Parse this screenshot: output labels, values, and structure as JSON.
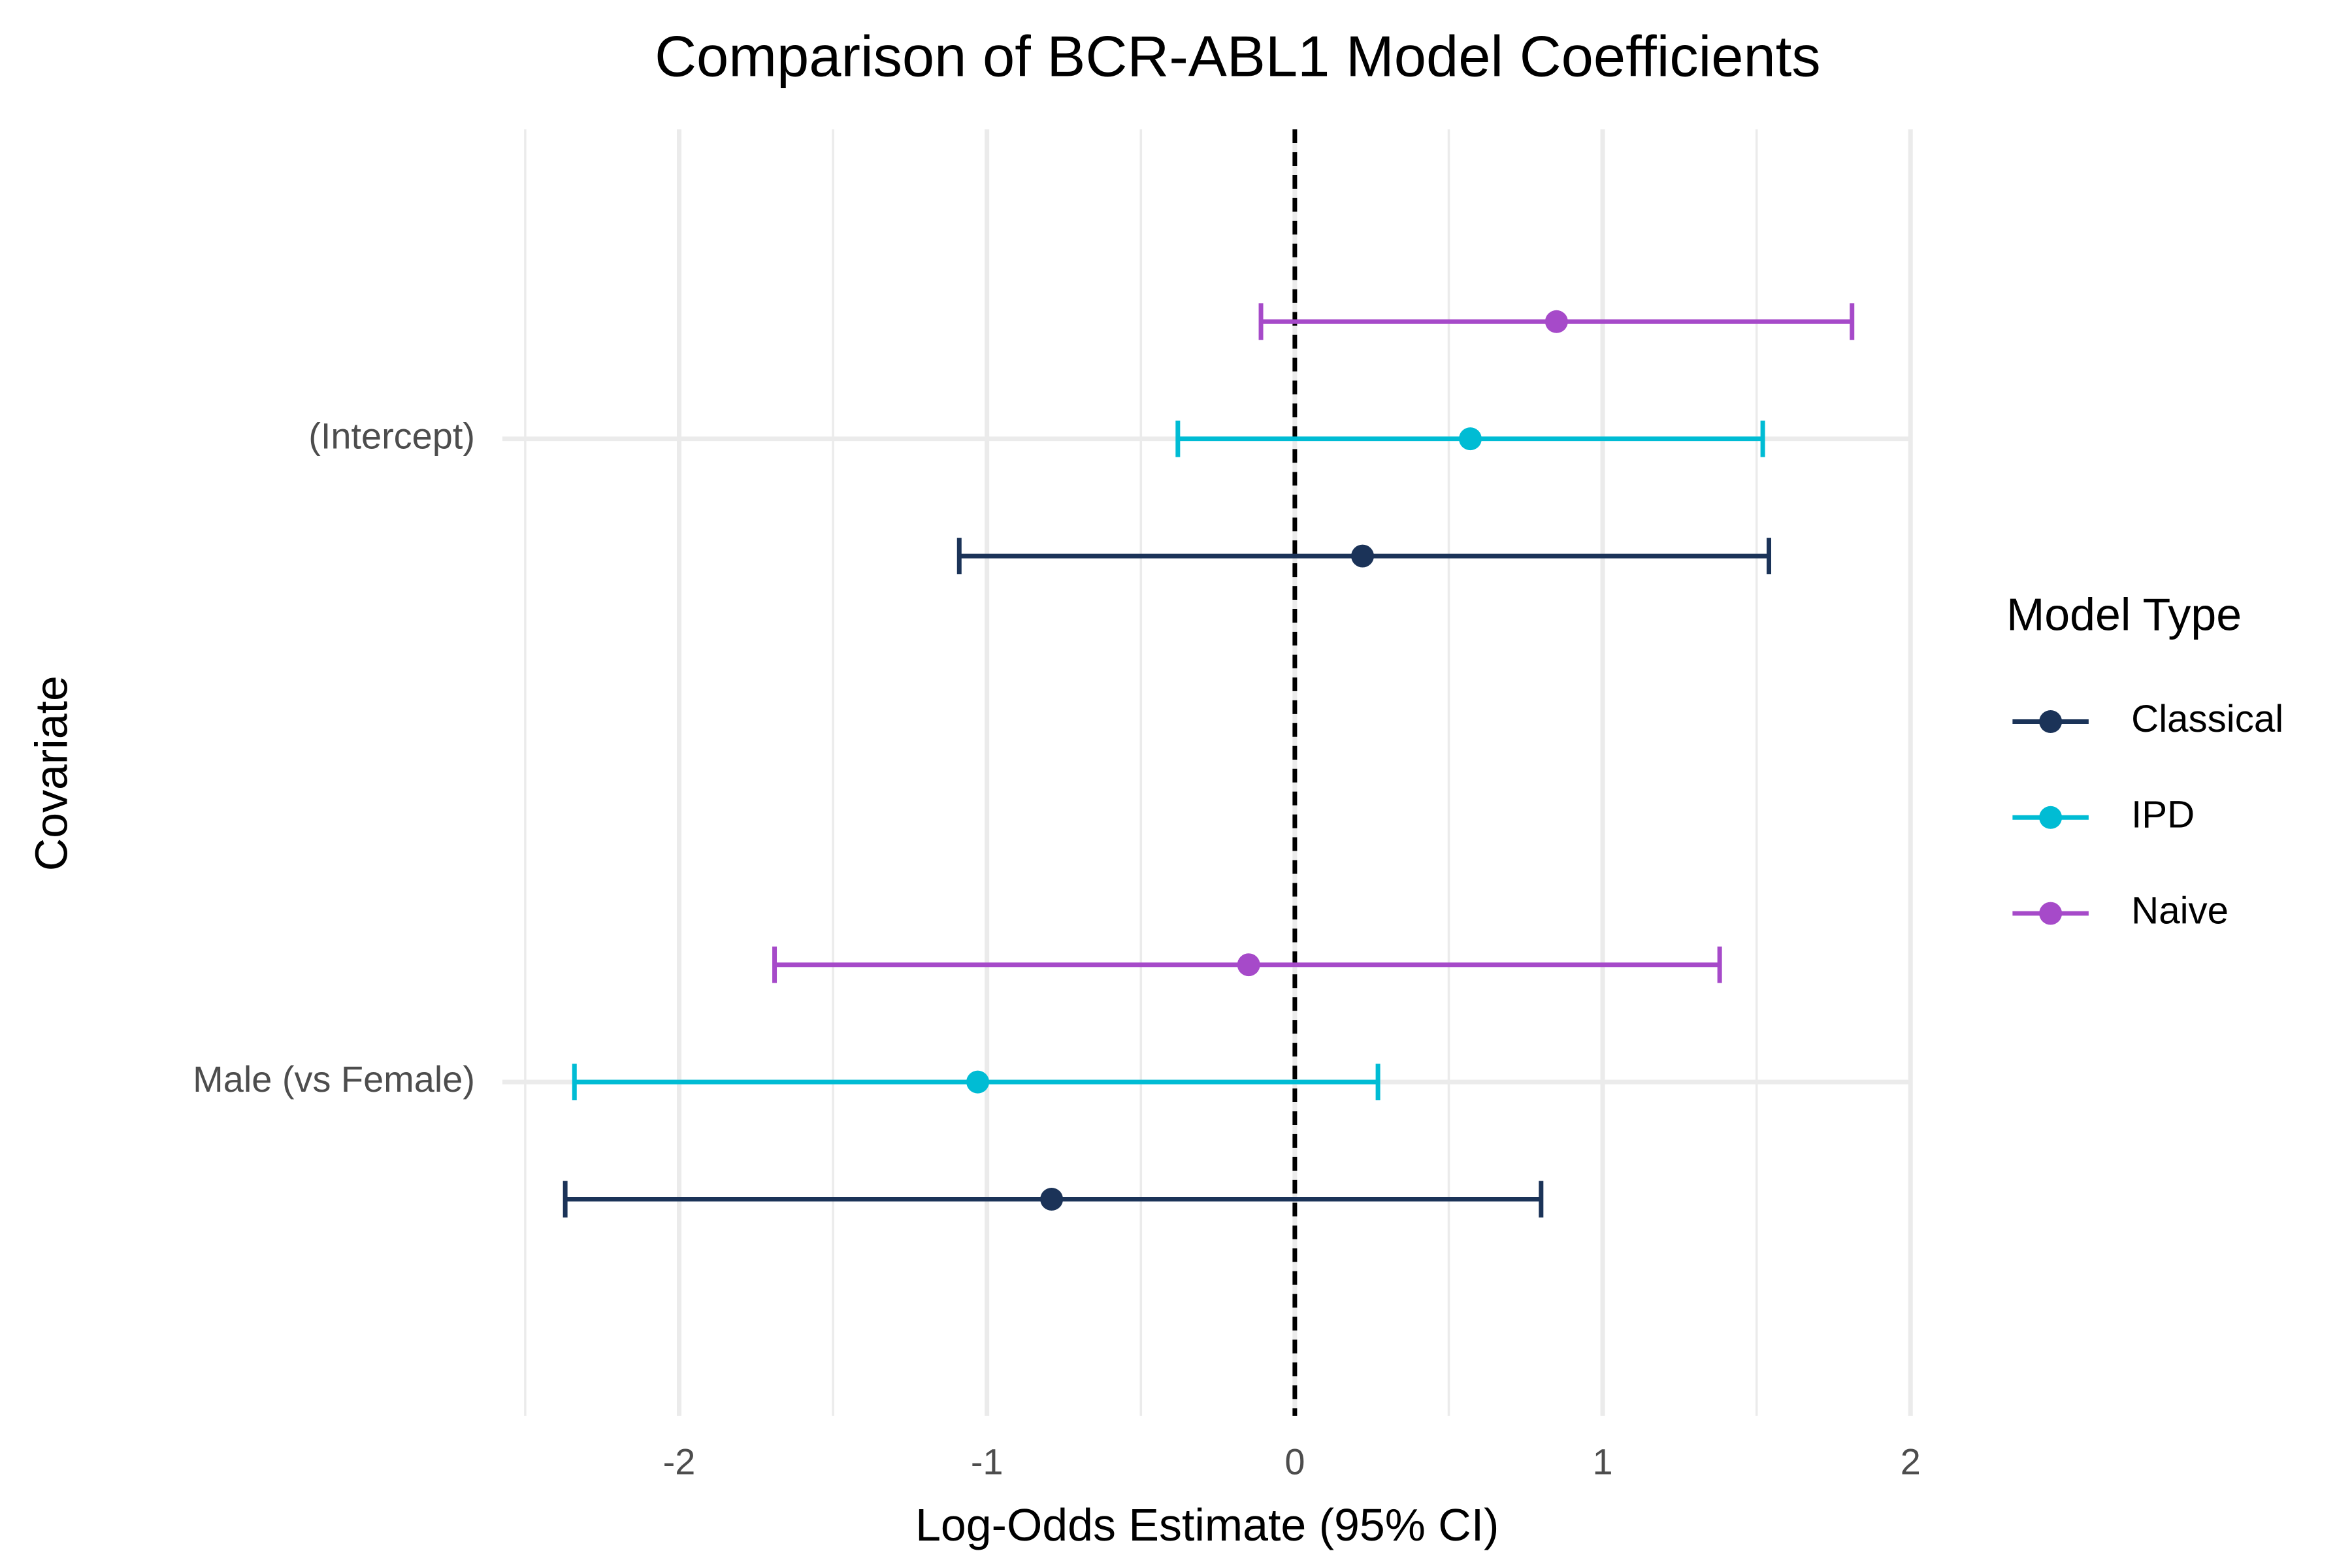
{
  "chart_data": {
    "type": "errorbar",
    "title": "Comparison of BCR-ABL1 Model Coefficients",
    "x_label": "Log-Odds Estimate (95% CI)",
    "y_label": "Covariate",
    "categories": [
      "(Intercept)",
      "Male (vs Female)"
    ],
    "series": [
      {
        "name": "Classical",
        "color": "#1b3358",
        "values": [
          0.22,
          -0.79
        ],
        "lower": [
          -1.09,
          -2.37
        ],
        "upper": [
          1.54,
          0.8
        ]
      },
      {
        "name": "IPD",
        "color": "#00bcd4",
        "values": [
          0.57,
          -1.03
        ],
        "lower": [
          -0.38,
          -2.34
        ],
        "upper": [
          1.52,
          0.27
        ]
      },
      {
        "name": "Naive",
        "color": "#a64ac9",
        "values": [
          0.85,
          -0.15
        ],
        "lower": [
          -0.11,
          -1.69
        ],
        "upper": [
          1.81,
          1.38
        ]
      }
    ],
    "xlim": [
      -2.5,
      2
    ],
    "xticks": [
      -2,
      -1,
      0,
      1,
      2
    ],
    "reference_line": 0,
    "legend_title": "Model Type",
    "legend_position": "right",
    "grid": true
  }
}
